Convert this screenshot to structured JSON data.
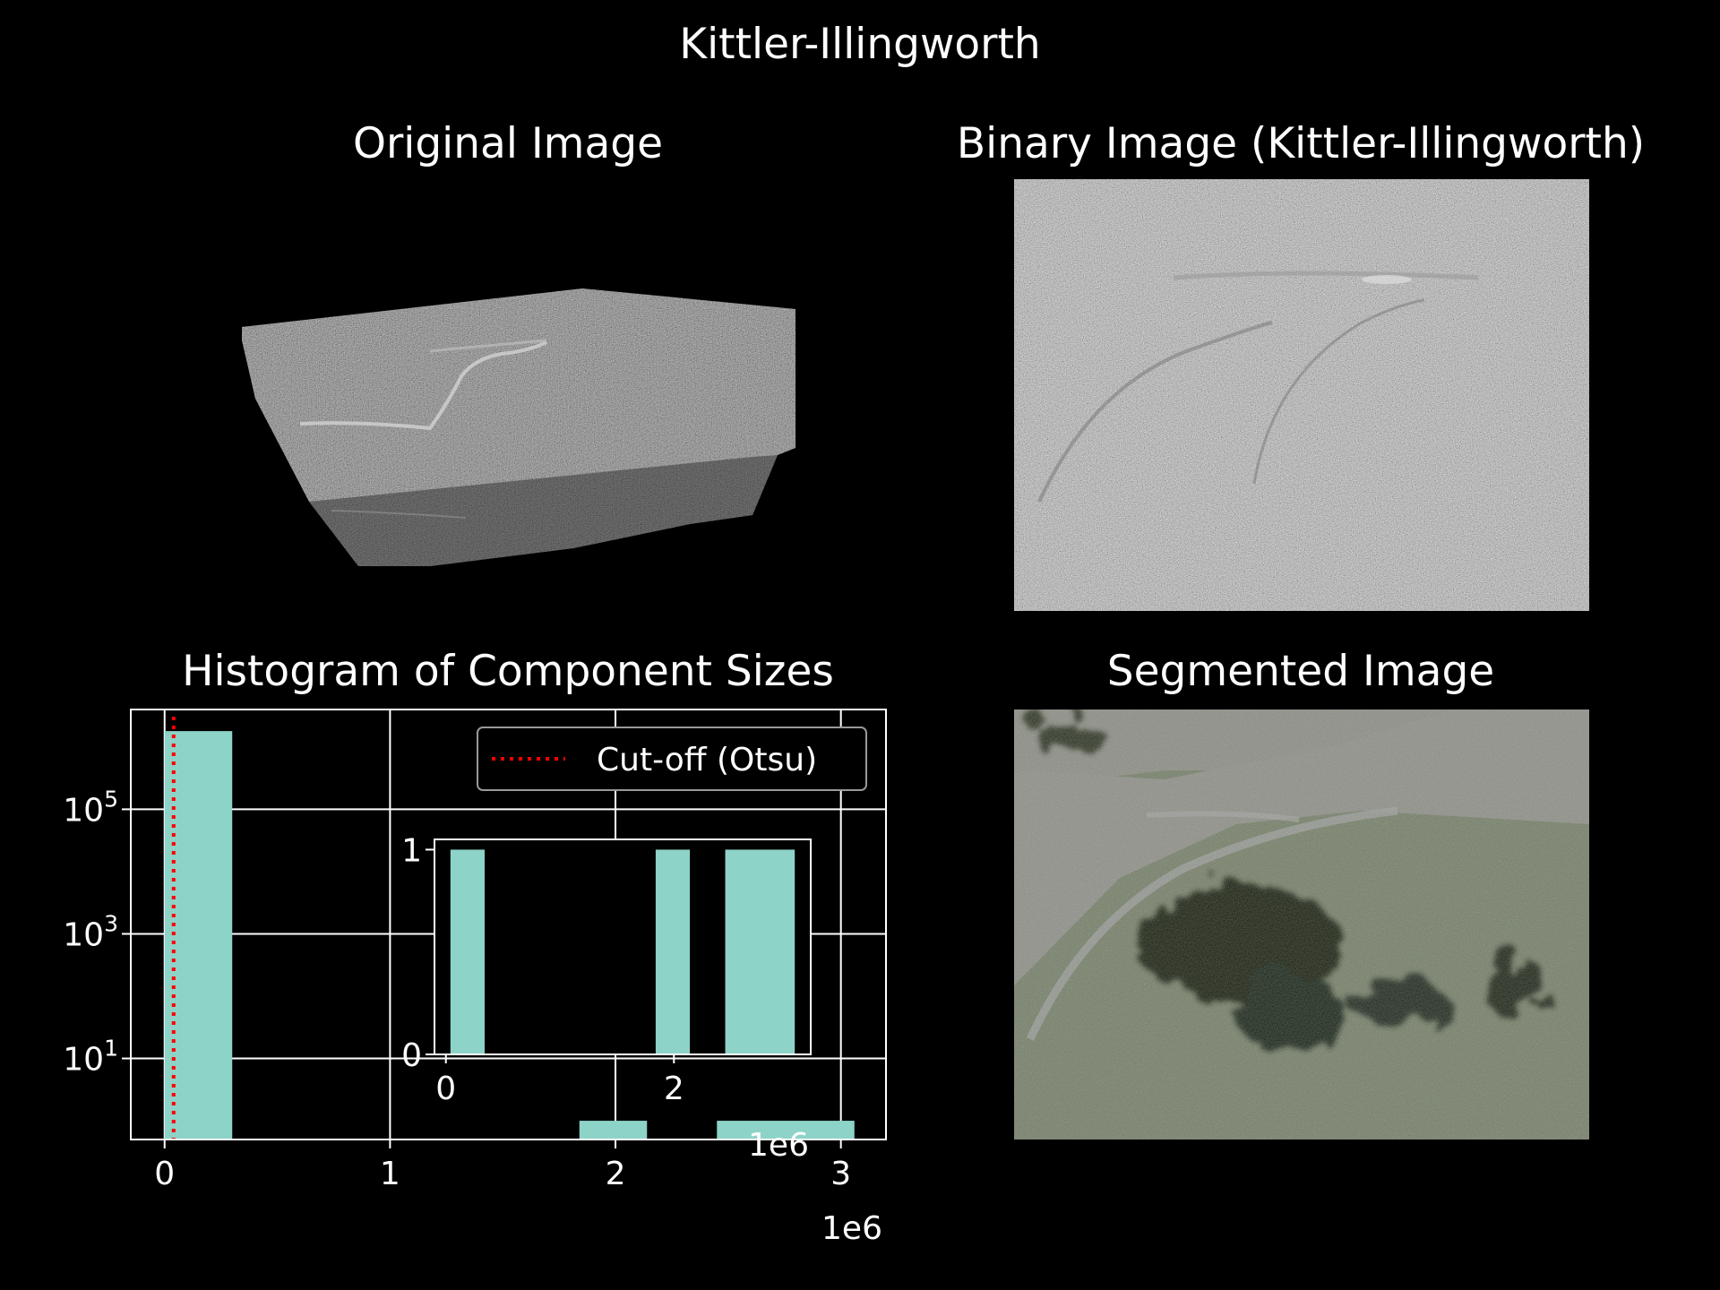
{
  "figure": {
    "suptitle": "Kittler-Illingworth"
  },
  "panels": {
    "original": {
      "title": "Original Image"
    },
    "binary": {
      "title": "Binary Image (Kittler-Illingworth)"
    },
    "histogram": {
      "title": "Histogram of Component Sizes"
    },
    "segmented": {
      "title": "Segmented Image"
    }
  },
  "colors": {
    "bar": "#8dd3c7",
    "cutoff": "#ff0000",
    "axes": "#ffffff",
    "background": "#000000",
    "legend_edge": "#999999"
  },
  "chart_data": [
    {
      "id": "main_histogram",
      "type": "bar",
      "title": "Histogram of Component Sizes",
      "xlabel": "",
      "ylabel": "",
      "x_scale_label": "1e6",
      "y_scale": "log",
      "xlim": [
        -150000,
        3200000
      ],
      "ylim": [
        0.5,
        4000000
      ],
      "xticks": [
        0,
        1,
        2,
        3
      ],
      "xtick_labels": [
        "0",
        "1",
        "2",
        "3"
      ],
      "yticks": [
        10,
        1000,
        100000
      ],
      "ytick_labels": [
        {
          "base": "10",
          "exp": "1"
        },
        {
          "base": "10",
          "exp": "3"
        },
        {
          "base": "10",
          "exp": "5"
        }
      ],
      "grid": true,
      "bins": [
        {
          "x0": 0,
          "x1": 300000,
          "count": 1800000
        },
        {
          "x0": 1840000,
          "x1": 2140000,
          "count": 1
        },
        {
          "x0": 2450000,
          "x1": 3060000,
          "count": 1
        }
      ],
      "cutoff": {
        "x": 40000,
        "label": "Cut-off (Otsu)"
      },
      "legend": {
        "placement": "upper right",
        "entries": [
          "Cut-off (Otsu)"
        ]
      }
    },
    {
      "id": "inset_histogram",
      "type": "bar",
      "x_scale_label": "1e6",
      "xlim": [
        -100000,
        3200000
      ],
      "ylim": [
        0,
        1.05
      ],
      "xticks": [
        0,
        2
      ],
      "xtick_labels": [
        "0",
        "2"
      ],
      "yticks": [
        0,
        1
      ],
      "ytick_labels": [
        "0",
        "1"
      ],
      "grid": false,
      "bins": [
        {
          "x0": 40000,
          "x1": 340000,
          "count": 1
        },
        {
          "x0": 1840000,
          "x1": 2140000,
          "count": 1
        },
        {
          "x0": 2450000,
          "x1": 3060000,
          "count": 1
        }
      ]
    }
  ]
}
